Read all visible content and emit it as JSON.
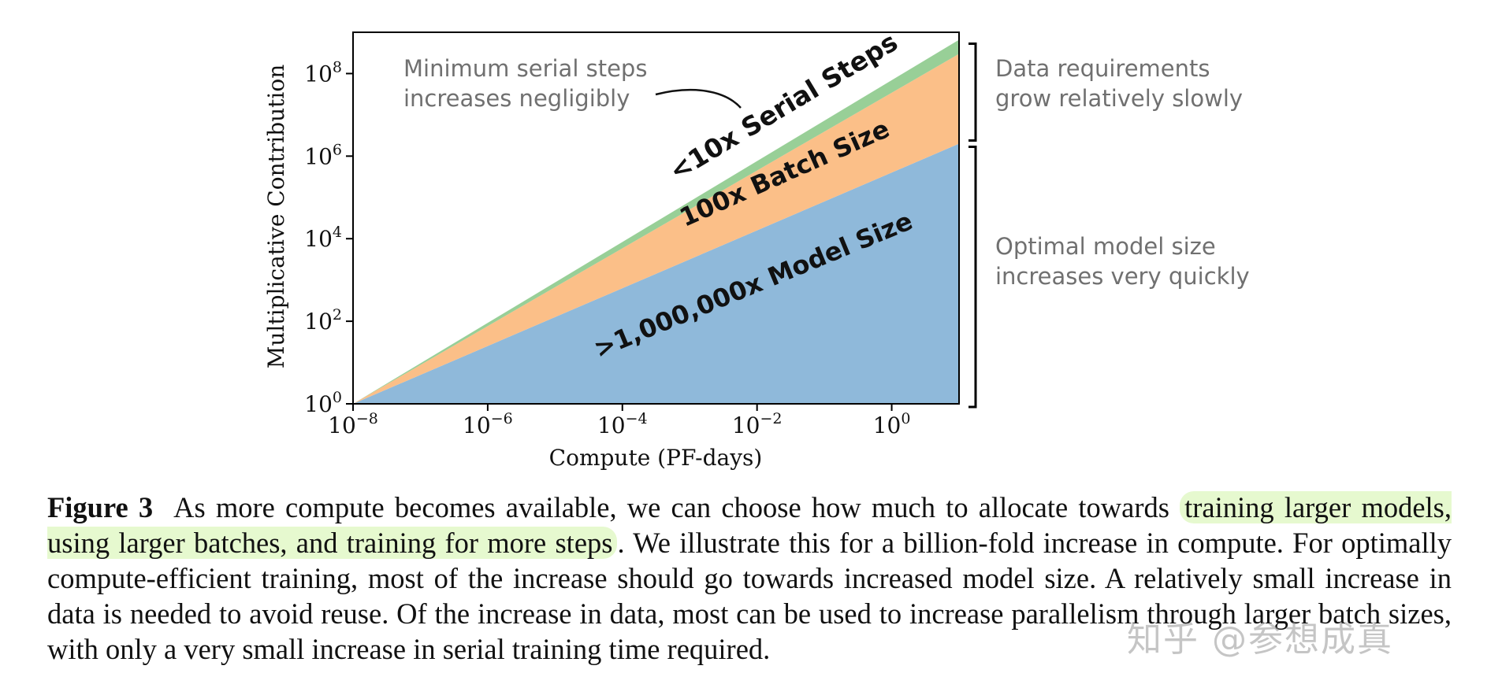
{
  "chart_data": {
    "type": "area",
    "stacked": true,
    "xscale": "log",
    "yscale": "log",
    "xlabel": "Compute (PF-days)",
    "ylabel": "Multiplicative Contribution",
    "xlim": [
      1e-08,
      10
    ],
    "ylim": [
      1,
      1000000000.0
    ],
    "x_ticks": [
      {
        "value": 1e-08,
        "base": "10",
        "exp": "−8"
      },
      {
        "value": 1e-06,
        "base": "10",
        "exp": "−6"
      },
      {
        "value": 0.0001,
        "base": "10",
        "exp": "−4"
      },
      {
        "value": 0.01,
        "base": "10",
        "exp": "−2"
      },
      {
        "value": 1,
        "base": "10",
        "exp": "0"
      }
    ],
    "y_ticks": [
      {
        "value": 1,
        "base": "10",
        "exp": "0"
      },
      {
        "value": 100.0,
        "base": "10",
        "exp": "2"
      },
      {
        "value": 10000.0,
        "base": "10",
        "exp": "4"
      },
      {
        "value": 1000000.0,
        "base": "10",
        "exp": "6"
      },
      {
        "value": 100000000.0,
        "base": "10",
        "exp": "8"
      }
    ],
    "series": [
      {
        "name": "Model Size",
        "color": "#8fb9da",
        "x": [
          1e-08,
          10
        ],
        "values": [
          1,
          2000000.0
        ],
        "label": ">1,000,000x Model Size"
      },
      {
        "name": "Batch Size",
        "color": "#fbbf88",
        "x": [
          1e-08,
          10
        ],
        "values": [
          1,
          150
        ],
        "label": "100x Batch Size"
      },
      {
        "name": "Serial Steps",
        "color": "#98cf97",
        "x": [
          1e-08,
          10
        ],
        "values": [
          1,
          2.2
        ],
        "label": "<10x Serial Steps"
      }
    ],
    "annotations": [
      {
        "id": "serial",
        "lines": [
          "Minimum serial steps",
          "increases negligibly"
        ]
      },
      {
        "id": "data",
        "lines": [
          "Data requirements",
          "grow relatively slowly"
        ]
      },
      {
        "id": "model",
        "lines": [
          "Optimal model size",
          "increases very quickly"
        ]
      }
    ]
  },
  "caption": {
    "label": "Figure 3",
    "text_before": "As more compute becomes available, we can choose how much to allocate towards ",
    "highlight": "training larger models, using larger batches, and training for more steps",
    "text_after": ". We illustrate this for a billion-fold increase in compute. For optimally compute-efficient training, most of the increase should go towards increased model size. A relatively small increase in data is needed to avoid reuse. Of the increase in data, most can be used to increase parallelism through larger batch sizes, with only a very small increase in serial training time required."
  },
  "watermark": "知乎 @参想成真"
}
